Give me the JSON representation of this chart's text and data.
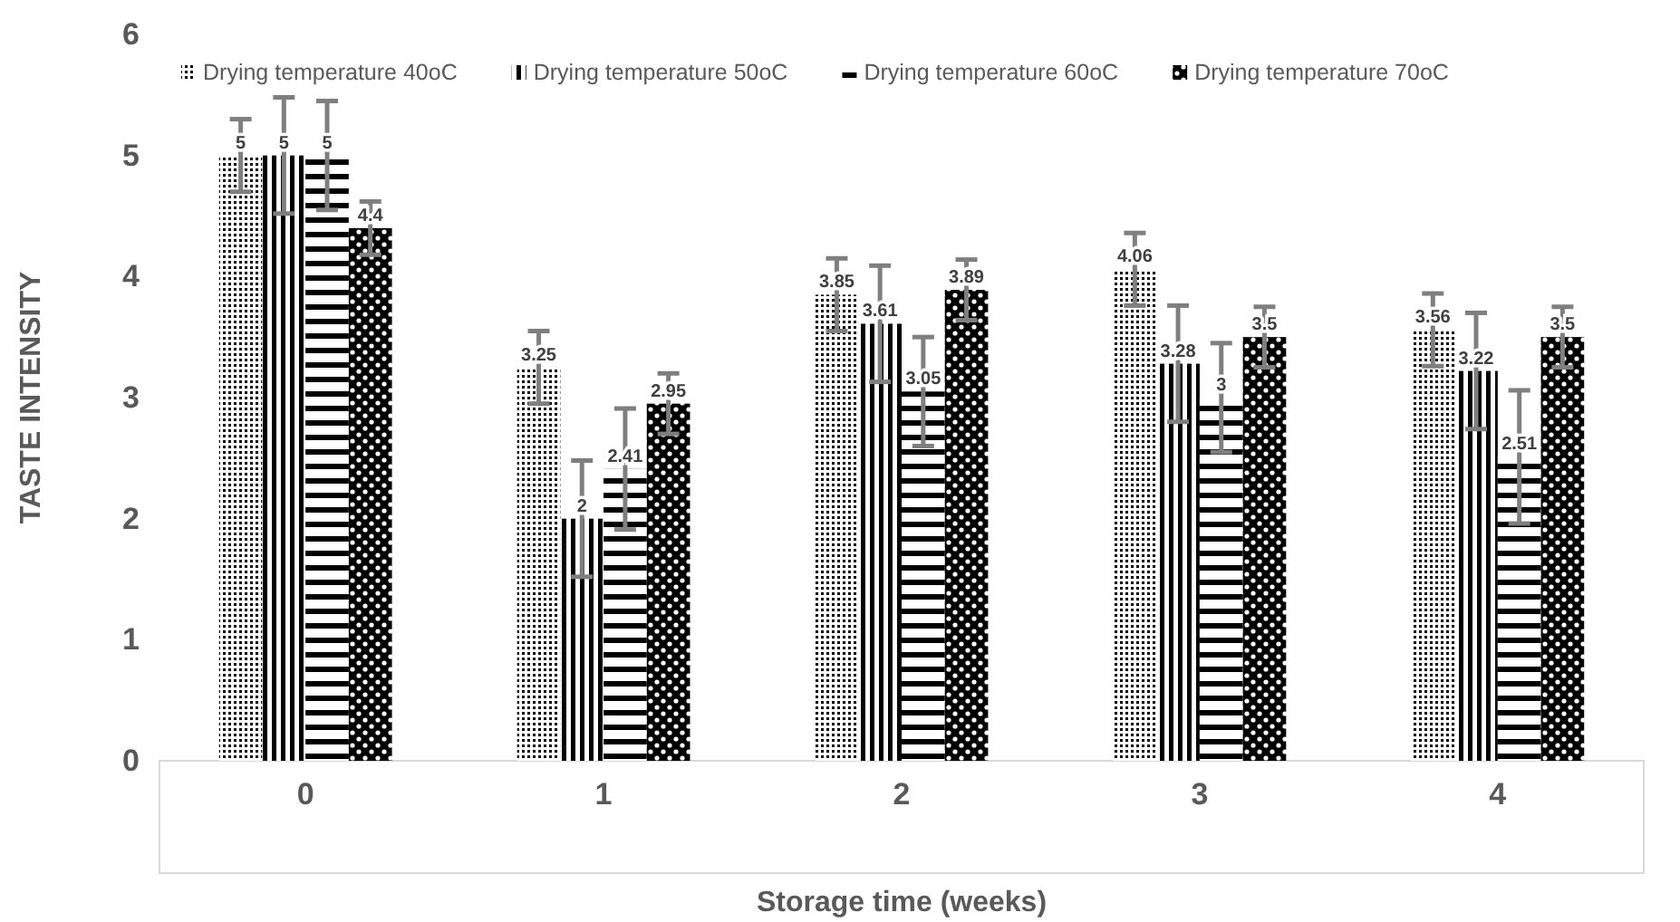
{
  "chart_data": {
    "type": "bar",
    "xlabel": "Storage time (weeks)",
    "ylabel": "TASTE INTENSITY",
    "categories": [
      "0",
      "1",
      "2",
      "3",
      "4"
    ],
    "series": [
      {
        "name": "Drying temperature 40oC",
        "color": "#000000",
        "values": [
          5,
          3.25,
          3.85,
          4.06,
          3.56
        ],
        "errors": [
          0.3,
          0.3,
          0.3,
          0.3,
          0.3
        ]
      },
      {
        "name": "Drying temperature 50oC",
        "color": "#000000",
        "values": [
          5,
          2,
          3.61,
          3.28,
          3.22
        ],
        "errors": [
          0.48,
          0.48,
          0.48,
          0.48,
          0.48
        ]
      },
      {
        "name": "Drying temperature 60oC",
        "color": "#000000",
        "values": [
          5,
          2.41,
          3.05,
          3,
          2.51
        ],
        "errors": [
          0.45,
          0.5,
          0.45,
          0.45,
          0.55
        ]
      },
      {
        "name": "Drying temperature 70oC",
        "color": "#000000",
        "values": [
          4.4,
          2.95,
          3.89,
          3.5,
          3.5
        ],
        "errors": [
          0.22,
          0.25,
          0.25,
          0.25,
          0.25
        ]
      }
    ],
    "ylim": [
      0,
      6
    ],
    "yticks": [
      0,
      1,
      2,
      3,
      4,
      5,
      6
    ],
    "grid": false,
    "legend": "top",
    "data_labels": true
  }
}
